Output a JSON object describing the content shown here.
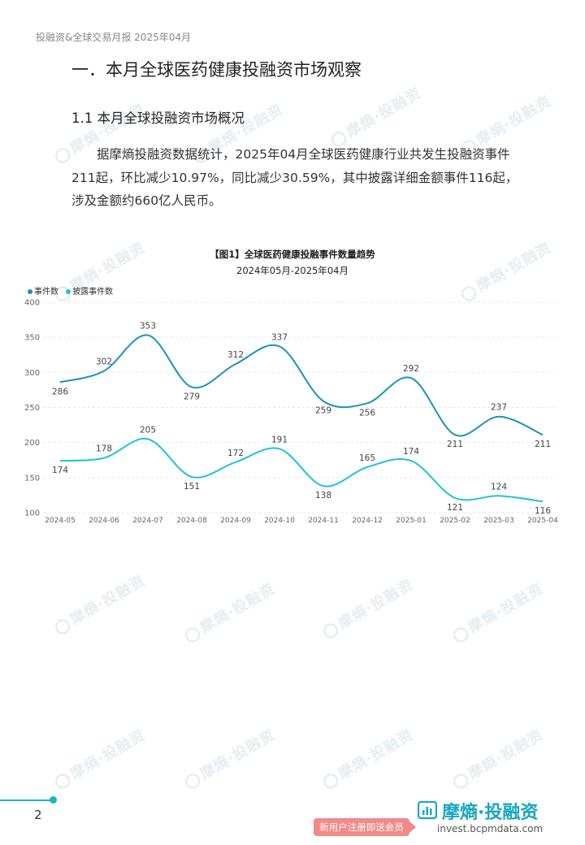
{
  "header": {
    "running_title": "投融资&全球交易月报 2025年04月"
  },
  "section": {
    "title": "一．本月全球医药健康投融资市场观察"
  },
  "subsection": {
    "title": "1.1  本月全球投融资市场概况"
  },
  "paragraph": {
    "text": "据摩熵投融资数据统计，2025年04月全球医药健康行业共发生投融资事件211起，环比减少10.97%，同比减少30.59%，其中披露详细金额事件116起，涉及金额约660亿人民币。"
  },
  "watermark": {
    "text": "摩熵·投融资"
  },
  "chart_data": {
    "type": "line",
    "title": "【图1】全球医药健康投融事件数量趋势",
    "subtitle": "2024年05月-2025年04月",
    "categories": [
      "2024-05",
      "2024-06",
      "2024-07",
      "2024-08",
      "2024-09",
      "2024-10",
      "2024-11",
      "2024-12",
      "2025-01",
      "2025-02",
      "2025-03",
      "2025-04"
    ],
    "series": [
      {
        "name": "事件数",
        "values": [
          286,
          302,
          353,
          279,
          312,
          337,
          259,
          256,
          292,
          211,
          237,
          211
        ],
        "color": "#1a93b8"
      },
      {
        "name": "披露事件数",
        "values": [
          174,
          178,
          205,
          151,
          172,
          191,
          138,
          165,
          174,
          121,
          124,
          116
        ],
        "color": "#1ec3d6"
      }
    ],
    "yticks": [
      "400",
      "350",
      "300",
      "250",
      "200",
      "150",
      "100"
    ],
    "ylim": [
      100,
      400
    ],
    "grid": "horizontal dashed",
    "legend": "top-left"
  },
  "footer": {
    "page_number": "2",
    "promo": "新用户注册即送会员",
    "brand_name": "摩熵·投融资",
    "brand_url": "invest.bcpmdata.com"
  }
}
